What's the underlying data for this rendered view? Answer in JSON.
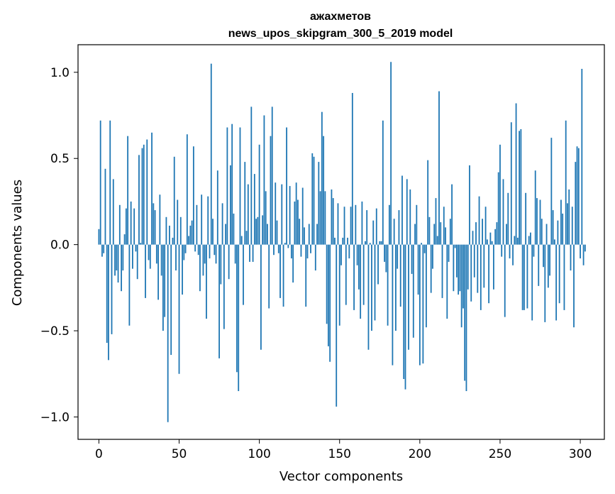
{
  "chart_data": {
    "type": "bar",
    "title_line1": "ажахметов",
    "title_line2": "news_upos_skipgram_300_5_2019 model",
    "xlabel": "Vector components",
    "ylabel": "Components values",
    "xlim": [
      -13,
      315
    ],
    "ylim": [
      -1.13,
      1.16
    ],
    "xticks": [
      0,
      50,
      100,
      150,
      200,
      250,
      300
    ],
    "xtick_labels": [
      "0",
      "50",
      "100",
      "150",
      "200",
      "250",
      "300"
    ],
    "yticks": [
      -1.0,
      -0.5,
      0.0,
      0.5,
      1.0
    ],
    "ytick_labels": [
      "−1.0",
      "−0.5",
      "0.0",
      "0.5",
      "1.0"
    ],
    "grid": false,
    "color": "#1f77b4",
    "values": [
      0.09,
      0.72,
      -0.07,
      -0.05,
      0.44,
      -0.57,
      -0.67,
      0.72,
      -0.52,
      0.38,
      -0.18,
      -0.15,
      -0.22,
      0.23,
      -0.27,
      -0.15,
      0.06,
      0.21,
      0.63,
      -0.47,
      0.25,
      -0.14,
      0.21,
      -0.04,
      -0.2,
      0.52,
      0.01,
      0.56,
      0.58,
      -0.31,
      0.61,
      -0.09,
      -0.14,
      0.65,
      0.24,
      0.2,
      -0.11,
      -0.32,
      0.29,
      -0.18,
      -0.5,
      -0.42,
      0.16,
      -1.03,
      0.11,
      -0.64,
      0.04,
      0.51,
      -0.15,
      0.26,
      -0.75,
      0.16,
      -0.29,
      -0.09,
      -0.05,
      0.64,
      0.05,
      0.11,
      0.14,
      0.57,
      -0.04,
      0.23,
      -0.06,
      -0.27,
      0.29,
      -0.18,
      -0.11,
      -0.43,
      0.28,
      -0.08,
      1.05,
      0.15,
      -0.06,
      -0.11,
      0.43,
      -0.66,
      -0.23,
      0.24,
      -0.49,
      0.12,
      0.68,
      -0.2,
      0.46,
      0.7,
      0.18,
      -0.11,
      -0.74,
      -0.85,
      0.68,
      0.05,
      -0.35,
      0.48,
      0.08,
      0.35,
      -0.1,
      0.8,
      -0.1,
      0.41,
      0.15,
      0.16,
      0.58,
      -0.61,
      0.17,
      0.75,
      0.31,
      0.12,
      -0.37,
      0.63,
      0.8,
      -0.06,
      0.36,
      0.14,
      -0.05,
      -0.31,
      0.35,
      -0.36,
      0.01,
      0.68,
      -0.02,
      0.34,
      -0.08,
      -0.22,
      0.25,
      0.36,
      0.26,
      0.15,
      -0.07,
      0.33,
      0.1,
      -0.36,
      -0.08,
      0.12,
      -0.05,
      0.53,
      0.51,
      -0.15,
      0.12,
      0.48,
      0.31,
      0.77,
      0.63,
      0.31,
      -0.46,
      -0.59,
      -0.68,
      0.32,
      0.27,
      0.04,
      -0.94,
      0.24,
      -0.47,
      -0.12,
      0.04,
      0.22,
      -0.35,
      0.04,
      -0.08,
      0.22,
      0.88,
      -0.38,
      0.23,
      -0.12,
      -0.26,
      -0.43,
      0.25,
      -0.35,
      0.02,
      0.2,
      -0.61,
      0.01,
      -0.5,
      0.14,
      -0.44,
      0.21,
      -0.23,
      0.02,
      0.02,
      0.72,
      -0.1,
      -0.16,
      -0.47,
      0.23,
      1.06,
      -0.7,
      0.15,
      -0.5,
      -0.14,
      0.2,
      -0.36,
      0.4,
      -0.78,
      -0.84,
      0.38,
      -0.61,
      0.32,
      -0.17,
      -0.54,
      0.12,
      0.23,
      -0.29,
      -0.7,
      0.01,
      -0.69,
      -0.05,
      -0.48,
      0.49,
      0.16,
      -0.28,
      -0.14,
      0.12,
      0.27,
      0.05,
      0.89,
      0.13,
      -0.31,
      0.22,
      0.1,
      -0.43,
      -0.1,
      0.15,
      0.35,
      -0.27,
      -0.02,
      -0.19,
      -0.29,
      -0.27,
      -0.48,
      -0.37,
      -0.79,
      -0.85,
      -0.26,
      0.46,
      -0.33,
      0.08,
      -0.19,
      0.13,
      -0.28,
      0.28,
      -0.38,
      0.15,
      -0.25,
      0.22,
      0.03,
      -0.34,
      0.07,
      0.02,
      -0.26,
      0.09,
      0.13,
      0.42,
      0.58,
      -0.07,
      0.38,
      -0.42,
      0.12,
      0.3,
      -0.08,
      0.71,
      -0.12,
      0.05,
      0.82,
      0.04,
      0.66,
      0.67,
      -0.38,
      -0.38,
      0.3,
      -0.37,
      0.05,
      0.07,
      -0.44,
      -0.07,
      0.43,
      0.27,
      -0.24,
      0.26,
      0.15,
      -0.13,
      -0.45,
      0.12,
      -0.25,
      -0.18,
      0.62,
      0.2,
      0.03,
      -0.44,
      0.14,
      -0.34,
      0.26,
      0.18,
      -0.38,
      0.72,
      0.24,
      0.32,
      -0.15,
      0.22,
      -0.48,
      0.48,
      0.57,
      0.56,
      -0.08,
      1.02,
      -0.12,
      -0.04
    ]
  }
}
